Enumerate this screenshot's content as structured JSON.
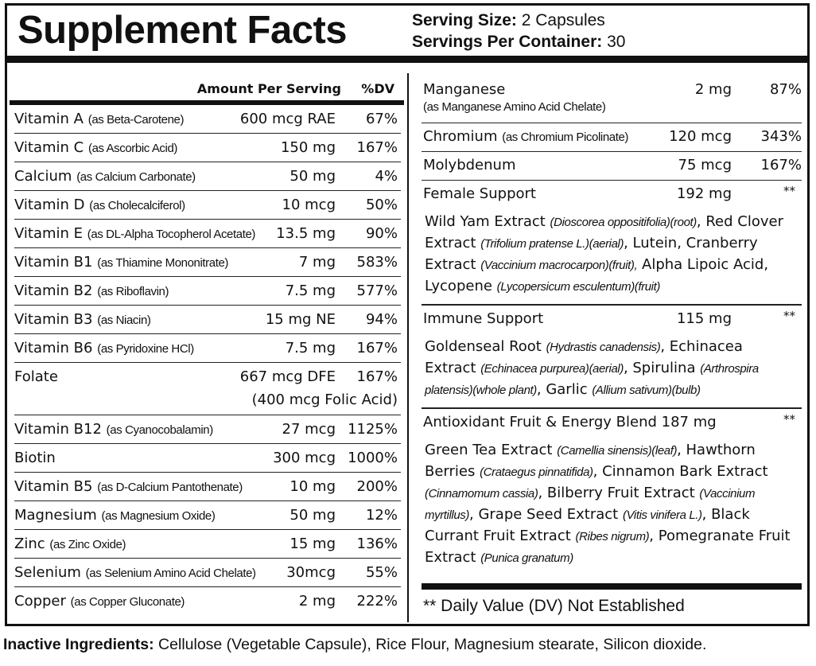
{
  "title": "Supplement Facts",
  "serving": {
    "size_label": "Serving Size:",
    "size_value": "2 Capsules",
    "per_label": "Servings Per Container:",
    "per_value": "30"
  },
  "left": {
    "header_amount": "Amount Per Serving",
    "header_dv": "%DV",
    "rows": [
      {
        "name": "Vitamin A",
        "qual": "(as Beta-Carotene)",
        "amount": "600 mcg RAE",
        "dv": "67%"
      },
      {
        "name": "Vitamin C",
        "qual": "(as Ascorbic Acid)",
        "amount": "150 mg",
        "dv": "167%"
      },
      {
        "name": "Calcium",
        "qual": "(as Calcium Carbonate)",
        "amount": "50 mg",
        "dv": "4%"
      },
      {
        "name": "Vitamin D",
        "qual": "(as Cholecalciferol)",
        "amount": "10 mcg",
        "dv": "50%"
      },
      {
        "name": "Vitamin E",
        "qual": "(as DL-Alpha Tocopherol Acetate)",
        "amount": "13.5 mg",
        "dv": "90%"
      },
      {
        "name": "Vitamin B1",
        "qual": "(as Thiamine Mononitrate)",
        "amount": "7 mg",
        "dv": "583%"
      },
      {
        "name": "Vitamin B2",
        "qual": "(as Riboflavin)",
        "amount": "7.5 mg",
        "dv": "577%"
      },
      {
        "name": "Vitamin B3",
        "qual": "(as Niacin)",
        "amount": "15 mg NE",
        "dv": "94%"
      },
      {
        "name": "Vitamin B6",
        "qual": "(as Pyridoxine HCl)",
        "amount": "7.5 mg",
        "dv": "167%"
      },
      {
        "name": "Folate",
        "qual": "",
        "amount": "667 mcg DFE",
        "dv": "167%",
        "sub": "(400 mcg Folic Acid)"
      },
      {
        "name": "Vitamin B12",
        "qual": "(as Cyanocobalamin)",
        "amount": "27 mcg",
        "dv": "1125%"
      },
      {
        "name": "Biotin",
        "qual": "",
        "amount": "300 mcg",
        "dv": "1000%"
      },
      {
        "name": "Vitamin B5",
        "qual": "(as D-Calcium Pantothenate)",
        "amount": "10 mg",
        "dv": "200%"
      },
      {
        "name": "Magnesium",
        "qual": "(as Magnesium Oxide)",
        "amount": "50 mg",
        "dv": "12%"
      },
      {
        "name": "Zinc",
        "qual": "(as Zinc Oxide)",
        "amount": "15 mg",
        "dv": "136%"
      },
      {
        "name": "Selenium",
        "qual": "(as Selenium Amino Acid Chelate)",
        "amount": "30mcg",
        "dv": "55%"
      },
      {
        "name": "Copper",
        "qual": "(as Copper Gluconate)",
        "amount": "2 mg",
        "dv": "222%"
      }
    ]
  },
  "right": {
    "manganese": {
      "name": "Manganese",
      "qual": "(as Manganese Amino Acid Chelate)",
      "amount": "2 mg",
      "dv": "87%"
    },
    "chromium": {
      "name": "Chromium",
      "qual": "(as Chromium Picolinate)",
      "amount": "120 mcg",
      "dv": "343%"
    },
    "molybdenum": {
      "name": "Molybdenum",
      "amount": "75 mcg",
      "dv": "167%"
    },
    "blends": [
      {
        "name": "Female Support",
        "amount": "192 mg",
        "dv": "**",
        "parts": [
          {
            "t": "Wild Yam Extract "
          },
          {
            "t": "(Dioscorea oppositifolia)(root)",
            "i": true
          },
          {
            "t": ", Red Clover Extract "
          },
          {
            "t": "(Trifolium pratense L.)(aerial)",
            "i": true
          },
          {
            "t": ", Lutein, Cranberry Extract "
          },
          {
            "t": "(Vaccinium macrocarpon)(fruit),",
            "i": true
          },
          {
            "t": " Alpha Lipoic Acid, Lycopene "
          },
          {
            "t": "(Lycopersicum esculentum)(fruit)",
            "i": true
          }
        ]
      },
      {
        "name": "Immune Support",
        "amount": "115 mg",
        "dv": "**",
        "parts": [
          {
            "t": "Goldenseal Root "
          },
          {
            "t": "(Hydrastis canadensis)",
            "i": true
          },
          {
            "t": ", Echinacea Extract "
          },
          {
            "t": "(Echinacea purpurea)(aerial)",
            "i": true
          },
          {
            "t": ", Spirulina "
          },
          {
            "t": "(Arthrospira platensis)(whole plant)",
            "i": true
          },
          {
            "t": ", Garlic "
          },
          {
            "t": "(Allium sativum)(bulb)",
            "i": true
          }
        ]
      },
      {
        "name": "Antioxidant Fruit & Energy Blend 187 mg",
        "amount": "",
        "dv": "**",
        "parts": [
          {
            "t": "Green Tea Extract "
          },
          {
            "t": "(Camellia sinensis)(leaf)",
            "i": true
          },
          {
            "t": ", Hawthorn Berries "
          },
          {
            "t": "(Crataegus pinnatifida)",
            "i": true
          },
          {
            "t": ", Cinnamon Bark Extract "
          },
          {
            "t": "(Cinnamomum cassia)",
            "i": true
          },
          {
            "t": ", Bilberry Fruit Extract "
          },
          {
            "t": "(Vaccinium myrtillus)",
            "i": true
          },
          {
            "t": ", Grape Seed Extract "
          },
          {
            "t": "(Vitis vinifera L.)",
            "i": true
          },
          {
            "t": ", Black Currant Fruit Extract "
          },
          {
            "t": "(Ribes nigrum)",
            "i": true
          },
          {
            "t": ", Pomegranate Fruit Extract "
          },
          {
            "t": "(Punica granatum)",
            "i": true
          }
        ]
      }
    ],
    "footnote": "** Daily Value (DV) Not Established"
  },
  "inactive": {
    "label": "Inactive Ingredients:",
    "text": " Cellulose (Vegetable Capsule), Rice Flour, Magnesium stearate, Silicon dioxide."
  }
}
